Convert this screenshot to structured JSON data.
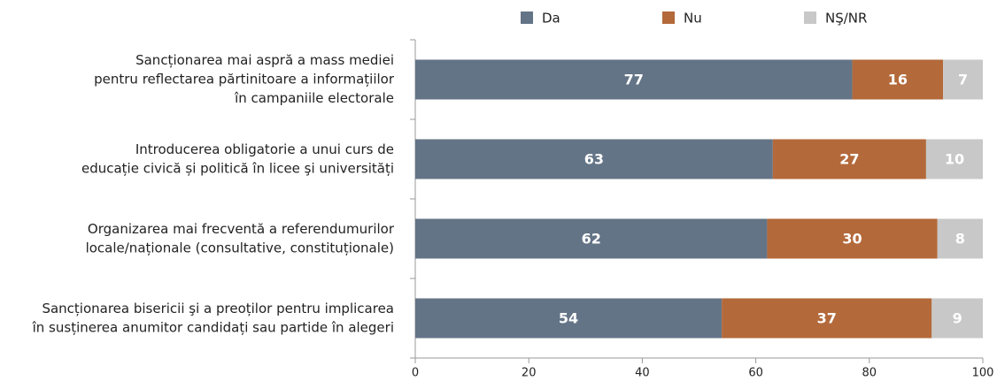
{
  "chart_data": {
    "type": "bar",
    "orientation": "horizontal",
    "stacked": true,
    "categories": [
      [
        "Sancționarea mai aspră a mass mediei",
        "pentru reflectarea părtinitoare a informațiilor",
        "în campaniile electorale"
      ],
      [
        "Introducerea obligatorie a unui curs de",
        "educație civică și politică în licee şi universități"
      ],
      [
        "Organizarea mai frecventă a referendumurilor",
        "locale/naționale (consultative, constituționale)"
      ],
      [
        "Sancționarea bisericii şi a preoților pentru implicarea",
        "în susținerea anumitor candidați sau partide în alegeri"
      ]
    ],
    "series": [
      {
        "name": "Da",
        "color": "#647487",
        "values": [
          77,
          63,
          62,
          54
        ]
      },
      {
        "name": "Nu",
        "color": "#b3693a",
        "values": [
          16,
          27,
          30,
          37
        ]
      },
      {
        "name": "NŞ/NR",
        "color": "#c8c8c8",
        "values": [
          7,
          10,
          8,
          9
        ]
      }
    ],
    "xlim": [
      0,
      100
    ],
    "xticks": [
      0,
      20,
      40,
      60,
      80,
      100
    ],
    "grid": false,
    "legend": "top"
  }
}
